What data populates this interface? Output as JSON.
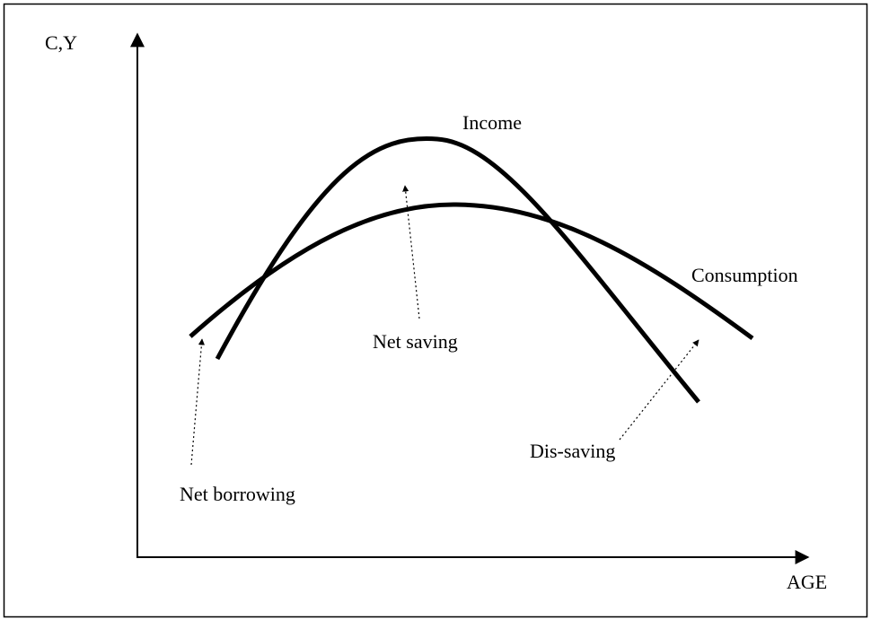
{
  "axes": {
    "y_label": "C,Y",
    "x_label": "AGE"
  },
  "curves": [
    {
      "label": "Income"
    },
    {
      "label": "Consumption"
    }
  ],
  "annotations": [
    {
      "label": "Net saving"
    },
    {
      "label": "Net borrowing"
    },
    {
      "label": "Dis-saving"
    }
  ]
}
